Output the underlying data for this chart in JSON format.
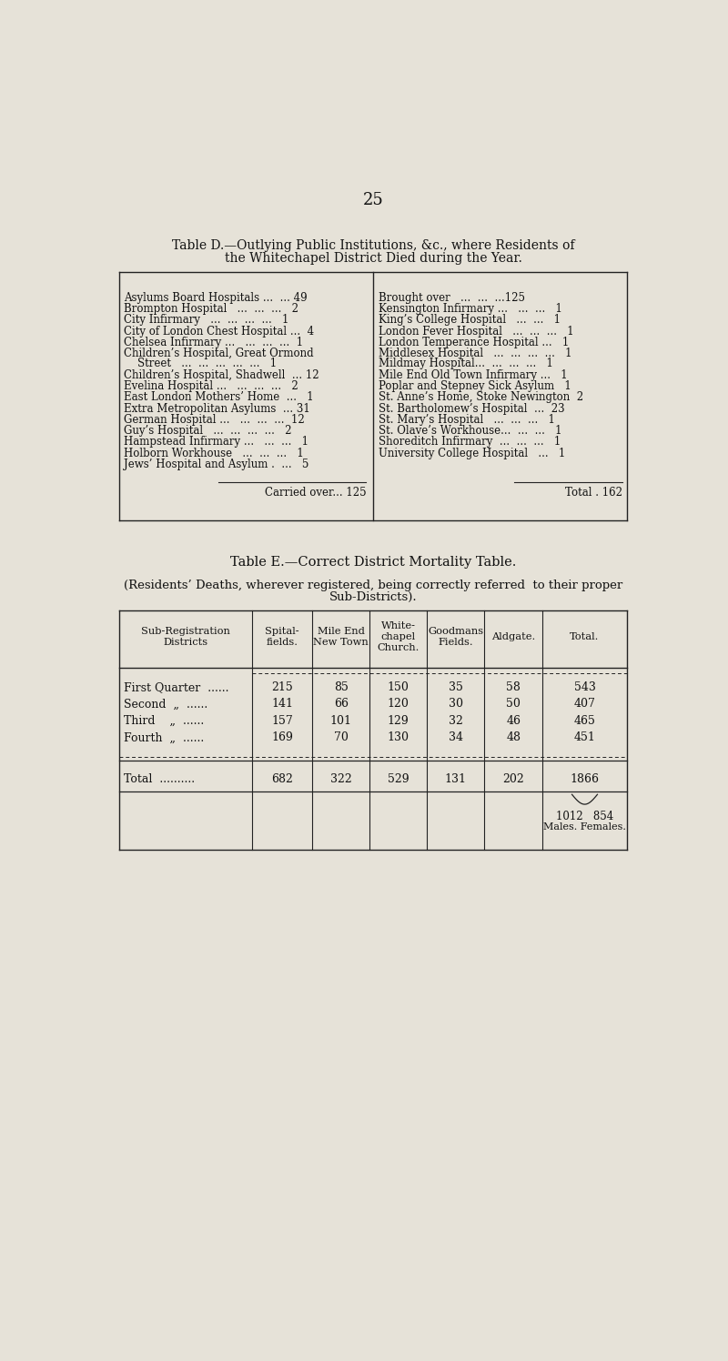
{
  "page_number": "25",
  "bg_color": "#e6e2d8",
  "table_d_title_line1": "Table D.—Outlying Public Institutions, &c., where Residents of",
  "table_d_title_line2": "the Whitechapel District Died during the Year.",
  "left_entries": [
    [
      "Asylums Board Hospitals ...  ... 49",
      192
    ],
    [
      "Brompton Hospital   ...  ...  ...   2",
      208
    ],
    [
      "City Infirmary   ...  ...  ...  ...   1",
      224
    ],
    [
      "City of London Chest Hospital ...  4",
      240
    ],
    [
      "Chelsea Infirmary ...   ...  ...  ...  1",
      256
    ],
    [
      "Children’s Hospital, Great Ormond",
      272
    ],
    [
      "    Street   ...  ...  ...  ...  ...   1",
      286
    ],
    [
      "Children’s Hospital, Shadwell  ... 12",
      302
    ],
    [
      "Evelina Hospital ...   ...  ...  ...   2",
      318
    ],
    [
      "East London Mothers’ Home  ...   1",
      334
    ],
    [
      "Extra Metropolitan Asylums  ... 31",
      350
    ],
    [
      "German Hospital ...   ...  ...  ...  12",
      366
    ],
    [
      "Guy’s Hospital   ...  ...  ...  ...   2",
      382
    ],
    [
      "Hampstead Infirmary ...   ...  ...   1",
      398
    ],
    [
      "Holborn Workhouse   ...  ...  ...   1",
      414
    ],
    [
      "Jews’ Hospital and Asylum .  ...   5",
      430
    ]
  ],
  "right_entries": [
    [
      "Brought over   ...  ...  ...125",
      192
    ],
    [
      "Kensington Infirmary ...   ...  ...   1",
      208
    ],
    [
      "King’s College Hospital   ...  ...   1",
      224
    ],
    [
      "London Fever Hospital   ...  ...  ...   1",
      240
    ],
    [
      "London Temperance Hospital ...   1",
      256
    ],
    [
      "Middlesex Hospital   ...  ...  ...  ...   1",
      272
    ],
    [
      "Mildmay Hospital...  ...  ...  ...   1",
      286
    ],
    [
      "Mile End Old Town Infirmary ...   1",
      302
    ],
    [
      "Poplar and Stepney Sick Asylum   1",
      318
    ],
    [
      "St. Anne’s Home, Stoke Newington  2",
      334
    ],
    [
      "St. Bartholomew’s Hospital  ...  23",
      350
    ],
    [
      "St. Mary’s Hospital   ...  ...  ...   1",
      366
    ],
    [
      "St. Olave’s Workhouse...  ...  ...   1",
      382
    ],
    [
      "Shoreditch Infirmary  ...  ...  ...   1",
      398
    ],
    [
      "University College Hospital   ...   1",
      414
    ]
  ],
  "table_e_title": "Table E.—Correct District Mortality Table.",
  "table_e_sub1": "(Residents’ Deaths, wherever registered, being correctly referred  to their proper",
  "table_e_sub2": "Sub-Districts).",
  "col_headers": [
    "Sub-Registration\nDistricts",
    "Spital-\nfields.",
    "Mile End\nNew Town",
    "White-\nchapel\nChurch.",
    "Goodmans\nFields.",
    "Aldgate.",
    "Total."
  ],
  "row_data": [
    [
      "First Quarter  ......",
      "215",
      "85",
      "150",
      "35",
      "58",
      "543"
    ],
    [
      "Second  „  ......",
      "141",
      "66",
      "120",
      "30",
      "50",
      "407"
    ],
    [
      "Third    „  ......",
      "157",
      "101",
      "129",
      "32",
      "46",
      "465"
    ],
    [
      "Fourth  „  ......",
      "169",
      "70",
      "130",
      "34",
      "48",
      "451"
    ]
  ],
  "total_row": [
    "Total  ..........",
    "682",
    "322",
    "529",
    "131",
    "202",
    "1866"
  ],
  "footnote_line1": "1012   854",
  "footnote_line2": "Males. Females."
}
